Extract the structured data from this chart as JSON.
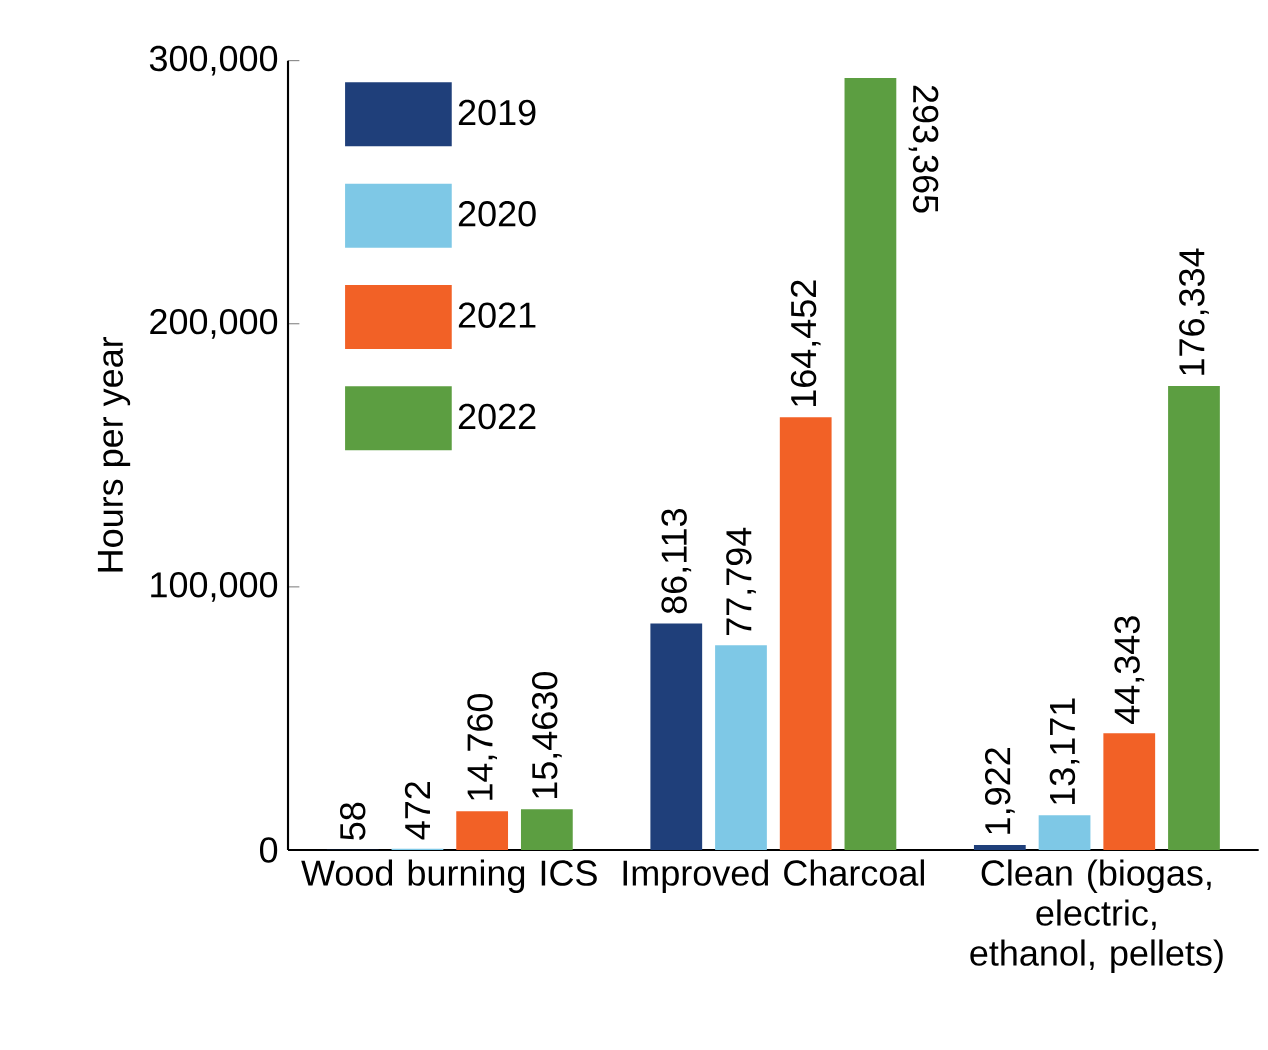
{
  "chart_data": {
    "type": "bar",
    "ylabel": "Hours per year",
    "categories": [
      "Wood burning ICS",
      "Improved Charcoal",
      "Clean (biogas, electric, ethanol, pellets)"
    ],
    "series": [
      {
        "name": "2019",
        "color": "#1f3f7a",
        "values": [
          58,
          86113,
          1922
        ],
        "value_labels": [
          "58",
          "86,113",
          "1,922"
        ]
      },
      {
        "name": "2020",
        "color": "#7ec8e6",
        "values": [
          472,
          77794,
          13171
        ],
        "value_labels": [
          "472",
          "77,794",
          "13,171"
        ]
      },
      {
        "name": "2021",
        "color": "#f26126",
        "values": [
          14760,
          164452,
          44343
        ],
        "value_labels": [
          "14,760",
          "164,452",
          "44,343"
        ]
      },
      {
        "name": "2022",
        "color": "#5c9e41",
        "values": [
          15463,
          293365,
          176334
        ],
        "value_labels": [
          "15,4630",
          "293,365",
          "176,334"
        ]
      }
    ],
    "ylim": [
      0,
      300000
    ],
    "yticks": [
      {
        "value": 0,
        "label": "0"
      },
      {
        "value": 100000,
        "label": "100,000"
      },
      {
        "value": 200000,
        "label": "200,000"
      },
      {
        "value": 300000,
        "label": "300,000"
      }
    ],
    "grid": false,
    "legend": "top left"
  }
}
